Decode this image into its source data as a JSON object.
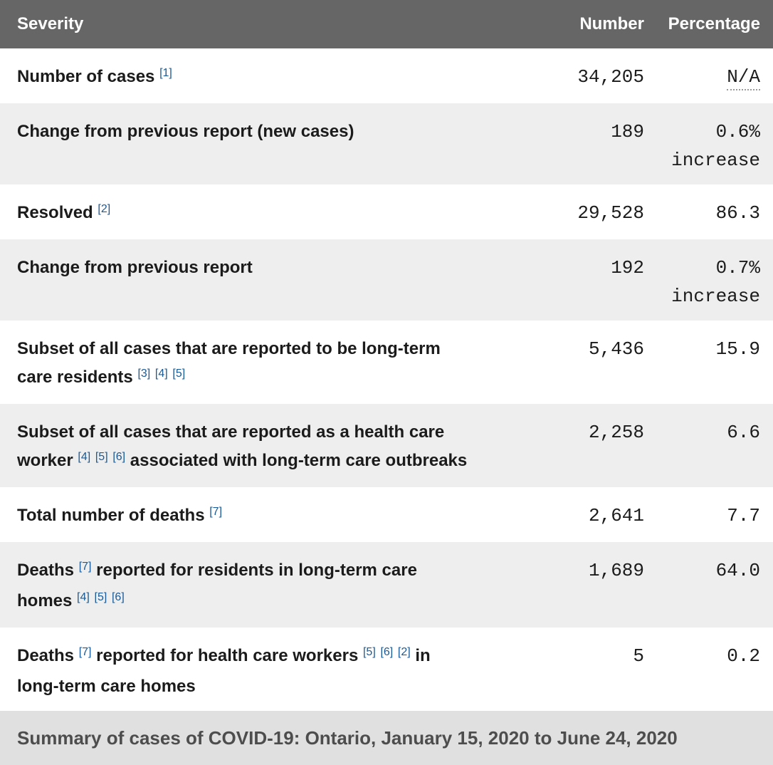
{
  "colors": {
    "header_background": "#666666",
    "header_text": "#ffffff",
    "shaded_row_background": "#eeeeee",
    "caption_background": "#e0e0e0",
    "caption_text": "#4d4d4d",
    "body_text": "#1b1b1b",
    "footnote_link": "#1a5a96"
  },
  "table": {
    "header": {
      "severity": "Severity",
      "number": "Number",
      "percentage": "Percentage"
    },
    "rows": [
      {
        "label": [
          [
            "t",
            "Number of cases "
          ],
          [
            "s",
            "[1]"
          ]
        ],
        "number": "34,205",
        "percentage": "N/A",
        "na": true,
        "shaded": false
      },
      {
        "label": [
          [
            "t",
            "Change from previous report (new cases)"
          ]
        ],
        "number": "189",
        "percentage": "0.6%\nincrease",
        "na": false,
        "shaded": true
      },
      {
        "label": [
          [
            "t",
            "Resolved "
          ],
          [
            "s",
            "[2]"
          ]
        ],
        "number": "29,528",
        "percentage": "86.3",
        "na": false,
        "shaded": false
      },
      {
        "label": [
          [
            "t",
            "Change from previous report"
          ]
        ],
        "number": "192",
        "percentage": "0.7%\nincrease",
        "na": false,
        "shaded": true
      },
      {
        "label": [
          [
            "t",
            "Subset of all cases that are reported to be long-term\ncare residents "
          ],
          [
            "s",
            "[3]"
          ],
          [
            "t",
            " "
          ],
          [
            "s",
            "[4]"
          ],
          [
            "t",
            " "
          ],
          [
            "s",
            "[5]"
          ]
        ],
        "number": "5,436",
        "percentage": "15.9",
        "na": false,
        "shaded": false
      },
      {
        "label": [
          [
            "t",
            "Subset of all cases that are reported as a health care\nworker "
          ],
          [
            "s",
            "[4]"
          ],
          [
            "t",
            " "
          ],
          [
            "s",
            "[5]"
          ],
          [
            "t",
            " "
          ],
          [
            "s",
            "[6]"
          ],
          [
            "t",
            " associated with long-term care outbreaks"
          ]
        ],
        "number": "2,258",
        "percentage": "6.6",
        "na": false,
        "shaded": true
      },
      {
        "label": [
          [
            "t",
            "Total number of deaths "
          ],
          [
            "s",
            "[7]"
          ]
        ],
        "number": "2,641",
        "percentage": "7.7",
        "na": false,
        "shaded": false
      },
      {
        "label": [
          [
            "t",
            "Deaths "
          ],
          [
            "s",
            "[7]"
          ],
          [
            "t",
            " reported for residents in long-term care\nhomes "
          ],
          [
            "s",
            "[4]"
          ],
          [
            "t",
            " "
          ],
          [
            "s",
            "[5]"
          ],
          [
            "t",
            " "
          ],
          [
            "s",
            "[6]"
          ]
        ],
        "number": "1,689",
        "percentage": "64.0",
        "na": false,
        "shaded": true
      },
      {
        "label": [
          [
            "t",
            "Deaths "
          ],
          [
            "s",
            "[7]"
          ],
          [
            "t",
            " reported for health care workers "
          ],
          [
            "s",
            "[5]"
          ],
          [
            "t",
            " "
          ],
          [
            "s",
            "[6]"
          ],
          [
            "t",
            " "
          ],
          [
            "s",
            "[2]"
          ],
          [
            "t",
            " in\nlong-term care homes"
          ]
        ],
        "number": "5",
        "percentage": "0.2",
        "na": false,
        "shaded": false
      }
    ],
    "caption": "Summary of cases of COVID-19: Ontario, January 15, 2020 to June 24, 2020"
  }
}
